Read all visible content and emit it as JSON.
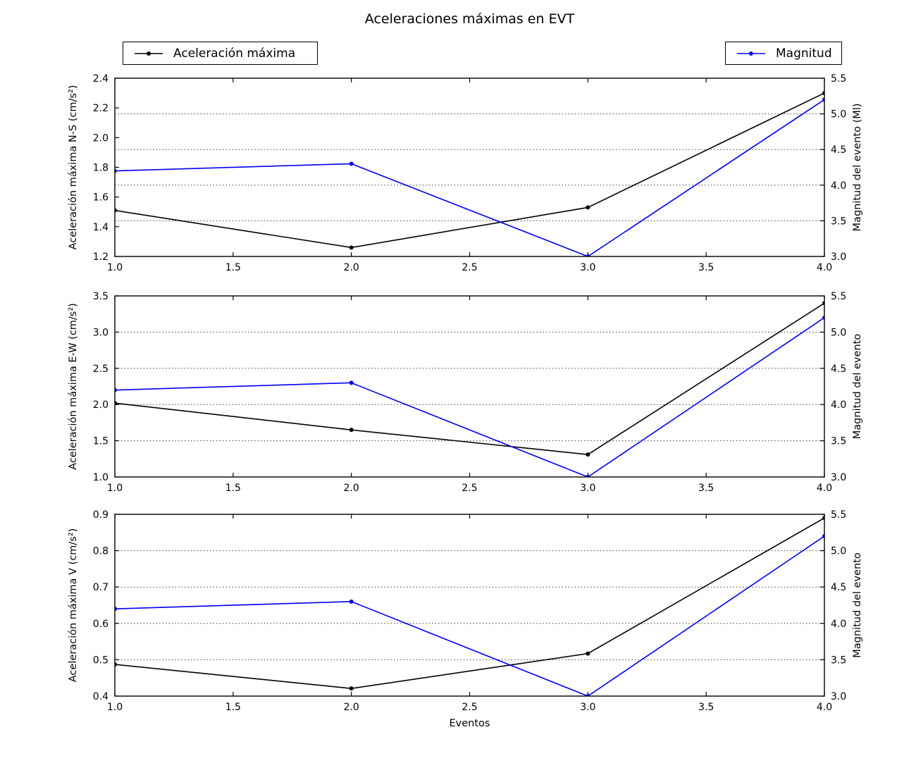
{
  "figure_title": "Aceleraciones máximas en EVT",
  "xlabel": "Eventos",
  "colors": {
    "acceleration": "#000000",
    "magnitude": "#0000ee",
    "grid": "#3a3a3a",
    "background": "#ffffff"
  },
  "legends": {
    "acceleration": {
      "label": "Aceleración máxima"
    },
    "magnitude": {
      "label": "Magnitud"
    }
  },
  "chart_data": [
    {
      "type": "line",
      "id": "ns",
      "ylabel_left": "Aceleración máxima N-S (cm/s²)",
      "ylabel_right": "Magnitud del evento (Ml)",
      "x": [
        1.0,
        2.0,
        3.0,
        4.0
      ],
      "xticks": [
        1.0,
        1.5,
        2.0,
        2.5,
        3.0,
        3.5,
        4.0
      ],
      "xlim": [
        1.0,
        4.0
      ],
      "ylim_left": [
        1.2,
        2.4
      ],
      "yticks_left": [
        1.2,
        1.4,
        1.6,
        1.8,
        2.0,
        2.2,
        2.4
      ],
      "ylim_right": [
        3.0,
        5.5
      ],
      "yticks_right": [
        3.0,
        3.5,
        4.0,
        4.5,
        5.0,
        5.5
      ],
      "grid": {
        "style": "dotted",
        "aligned_to": "right-axis-ticks"
      },
      "series": [
        {
          "key": "acceleration",
          "name": "Aceleración máxima",
          "axis": "left",
          "values": [
            1.51,
            1.26,
            1.53,
            2.3
          ]
        },
        {
          "key": "magnitude",
          "name": "Magnitud",
          "axis": "right",
          "values": [
            4.2,
            4.3,
            3.0,
            5.2
          ]
        }
      ]
    },
    {
      "type": "line",
      "id": "ew",
      "ylabel_left": "Aceleración máxima E-W (cm/s²)",
      "ylabel_right": "Magnitud del evento",
      "x": [
        1.0,
        2.0,
        3.0,
        4.0
      ],
      "xticks": [
        1.0,
        1.5,
        2.0,
        2.5,
        3.0,
        3.5,
        4.0
      ],
      "xlim": [
        1.0,
        4.0
      ],
      "ylim_left": [
        1.0,
        3.5
      ],
      "yticks_left": [
        1.0,
        1.5,
        2.0,
        2.5,
        3.0,
        3.5
      ],
      "ylim_right": [
        3.0,
        5.5
      ],
      "yticks_right": [
        3.0,
        3.5,
        4.0,
        4.5,
        5.0,
        5.5
      ],
      "grid": {
        "style": "dotted",
        "aligned_to": "right-axis-ticks"
      },
      "series": [
        {
          "key": "acceleration",
          "name": "Aceleración máxima",
          "axis": "left",
          "values": [
            2.02,
            1.65,
            1.31,
            3.4
          ]
        },
        {
          "key": "magnitude",
          "name": "Magnitud",
          "axis": "right",
          "values": [
            4.2,
            4.3,
            3.0,
            5.2
          ]
        }
      ]
    },
    {
      "type": "line",
      "id": "v",
      "ylabel_left": "Aceleración máxima V (cm/s²)",
      "ylabel_right": "Magnitud del evento",
      "x": [
        1.0,
        2.0,
        3.0,
        4.0
      ],
      "xticks": [
        1.0,
        1.5,
        2.0,
        2.5,
        3.0,
        3.5,
        4.0
      ],
      "xlim": [
        1.0,
        4.0
      ],
      "ylim_left": [
        0.4,
        0.9
      ],
      "yticks_left": [
        0.4,
        0.5,
        0.6,
        0.7,
        0.8,
        0.9
      ],
      "ylim_right": [
        3.0,
        5.5
      ],
      "yticks_right": [
        3.0,
        3.5,
        4.0,
        4.5,
        5.0,
        5.5
      ],
      "grid": {
        "style": "dotted",
        "aligned_to": "right-axis-ticks"
      },
      "series": [
        {
          "key": "acceleration",
          "name": "Aceleración máxima",
          "axis": "left",
          "values": [
            0.487,
            0.421,
            0.517,
            0.89
          ]
        },
        {
          "key": "magnitude",
          "name": "Magnitud",
          "axis": "right",
          "values": [
            4.2,
            4.3,
            3.0,
            5.2
          ]
        }
      ]
    }
  ]
}
